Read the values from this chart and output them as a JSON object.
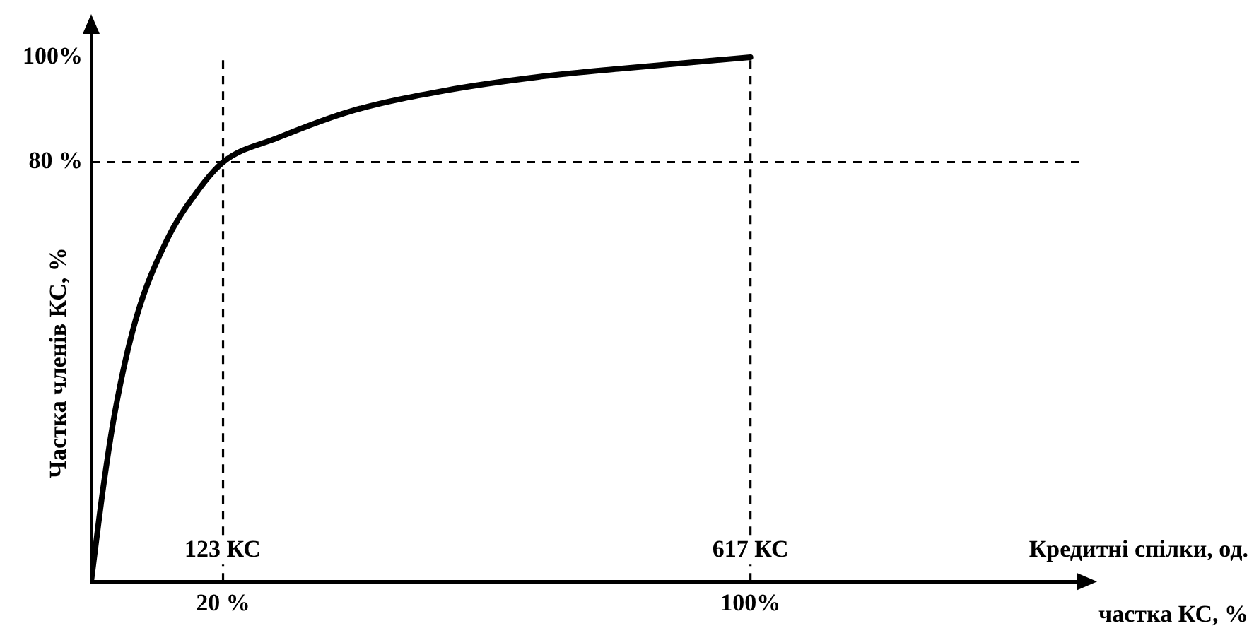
{
  "chart_data": {
    "type": "line",
    "xlabel": "частка КС, %",
    "ylabel": "Частка членів КС, %",
    "x2label": "Кредитні спілки, од.",
    "x": [
      0,
      1.8,
      3.6,
      6.7,
      11.5,
      15.8,
      20,
      28.2,
      39.3,
      53.9,
      68.8,
      79.9,
      100
    ],
    "series": [
      {
        "color": "#000000",
        "values": [
          0,
          17.7,
          32.3,
          49.7,
          65.2,
          73.9,
          80,
          84.6,
          89.7,
          93.7,
          96.4,
          97.8,
          100
        ]
      }
    ],
    "xlim": [
      0,
      150
    ],
    "xticks": [
      {
        "value": 20,
        "label": "20 %"
      },
      {
        "value": 100,
        "label": "100%"
      }
    ],
    "x2lim": [
      0,
      925.5
    ],
    "x2ticks": [
      {
        "value": 123,
        "label": "123 КС"
      },
      {
        "value": 617,
        "label": "617 КС"
      }
    ],
    "ylim": [
      0,
      105
    ],
    "yticks": [
      {
        "value": 80,
        "label": "80 %"
      },
      {
        "value": 100,
        "label": "100%"
      }
    ],
    "ref_lines": [
      {
        "axis": "x",
        "value": 20,
        "color": "#000000",
        "line_style": "dashed"
      },
      {
        "axis": "x",
        "value": 100,
        "color": "#000000",
        "line_style": "dashed"
      },
      {
        "axis": "y",
        "value": 80,
        "color": "#000000",
        "line_style": "dashed"
      }
    ],
    "grid": false,
    "legend": false,
    "marker": "none",
    "line_style": "solid"
  }
}
